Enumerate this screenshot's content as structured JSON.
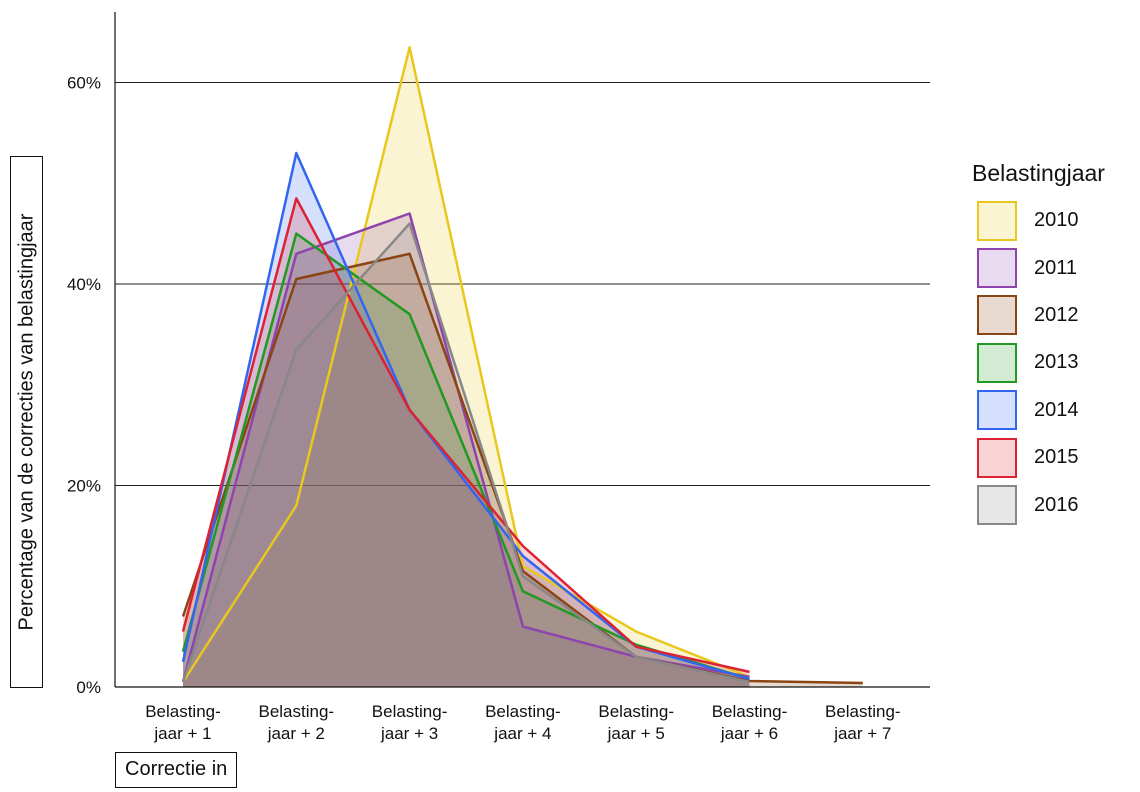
{
  "chart_data": {
    "type": "area",
    "title": "",
    "xlabel": "Correctie in",
    "ylabel": "Percentage van de correcties van belastingjaar",
    "categories": [
      [
        "Belasting-",
        "jaar + 1"
      ],
      [
        "Belasting-",
        "jaar + 2"
      ],
      [
        "Belasting-",
        "jaar + 3"
      ],
      [
        "Belasting-",
        "jaar + 4"
      ],
      [
        "Belasting-",
        "jaar + 5"
      ],
      [
        "Belasting-",
        "jaar + 6"
      ],
      [
        "Belasting-",
        "jaar + 7"
      ]
    ],
    "y_ticks": [
      "0%",
      "20%",
      "40%",
      "60%"
    ],
    "ylim": [
      0,
      67
    ],
    "grid": "horizontal",
    "legend_title": "Belastingjaar",
    "legend_position": "right",
    "series": [
      {
        "name": "2010",
        "color": "#e8c81f",
        "values": [
          0.5,
          18,
          63.5,
          12,
          5.5,
          1.0,
          null
        ]
      },
      {
        "name": "2011",
        "color": "#8e44ad",
        "values": [
          0.5,
          43,
          47,
          6,
          3,
          1.0,
          null
        ]
      },
      {
        "name": "2012",
        "color": "#8b4513",
        "values": [
          7,
          40.5,
          43,
          11.5,
          3,
          0.6,
          0.4
        ]
      },
      {
        "name": "2013",
        "color": "#229922",
        "values": [
          3.5,
          45,
          37,
          9.5,
          4.2,
          0.8,
          null
        ]
      },
      {
        "name": "2014",
        "color": "#3366ee",
        "values": [
          2.5,
          53,
          27.5,
          13,
          4,
          0.8,
          null
        ]
      },
      {
        "name": "2015",
        "color": "#dd2233",
        "values": [
          5.5,
          48.5,
          27.5,
          14,
          4,
          1.5,
          null
        ]
      },
      {
        "name": "2016",
        "color": "#888888",
        "values": [
          0.5,
          33.5,
          46,
          11,
          3,
          0.5,
          null
        ]
      }
    ]
  }
}
